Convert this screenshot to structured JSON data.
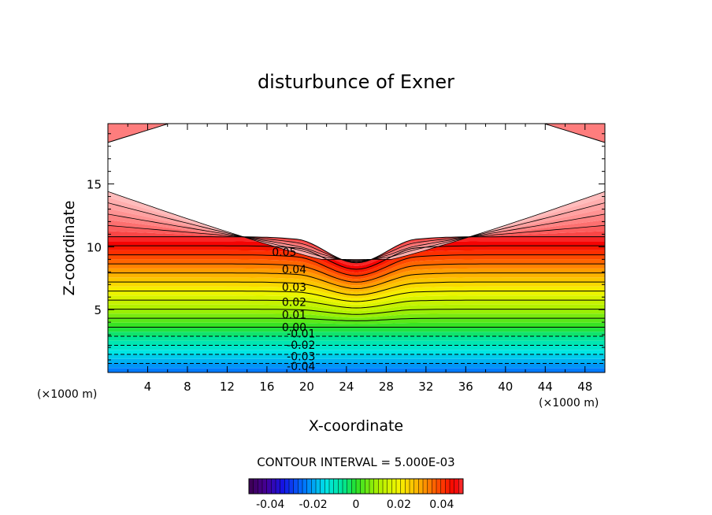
{
  "chart_data": {
    "type": "contour",
    "title": "disturbunce of Exner",
    "xlabel": "X-coordinate",
    "ylabel": "Z-coordinate",
    "x_unit_left": "(×1000 m)",
    "x_unit_right": "(×1000 m)",
    "xlim": [
      0,
      50
    ],
    "ylim": [
      0,
      19.8
    ],
    "x_ticks": [
      4,
      8,
      12,
      16,
      20,
      24,
      28,
      32,
      36,
      40,
      44,
      48
    ],
    "y_ticks": [
      5,
      10,
      15
    ],
    "contour_interval_label": "CONTOUR INTERVAL = 5.000E-03",
    "contour_interval": 0.005,
    "value_range": [
      -0.05,
      0.07
    ],
    "contour_labels": [
      {
        "text": "0.05",
        "x": 16.5,
        "z": 9.6
      },
      {
        "text": "0.04",
        "x": 17.5,
        "z": 8.2
      },
      {
        "text": "0.03",
        "x": 17.5,
        "z": 6.8
      },
      {
        "text": "0.02",
        "x": 17.5,
        "z": 5.6
      },
      {
        "text": "0.01",
        "x": 17.5,
        "z": 4.6
      },
      {
        "text": "0.00",
        "x": 17.5,
        "z": 3.6
      },
      {
        "text": "-0.01",
        "x": 18.0,
        "z": 3.1
      },
      {
        "text": "-0.02",
        "x": 18.0,
        "z": 2.2
      },
      {
        "text": "-0.03",
        "x": 18.0,
        "z": 1.3
      },
      {
        "text": "-0.04",
        "x": 18.0,
        "z": 0.5
      }
    ],
    "colorbar": {
      "ticks": [
        -0.04,
        -0.02,
        0,
        0.02,
        0.04
      ],
      "tick_labels": [
        "-0.04",
        "-0.02",
        "0",
        "0.02",
        "0.04"
      ],
      "range": [
        -0.05,
        0.05
      ]
    }
  }
}
